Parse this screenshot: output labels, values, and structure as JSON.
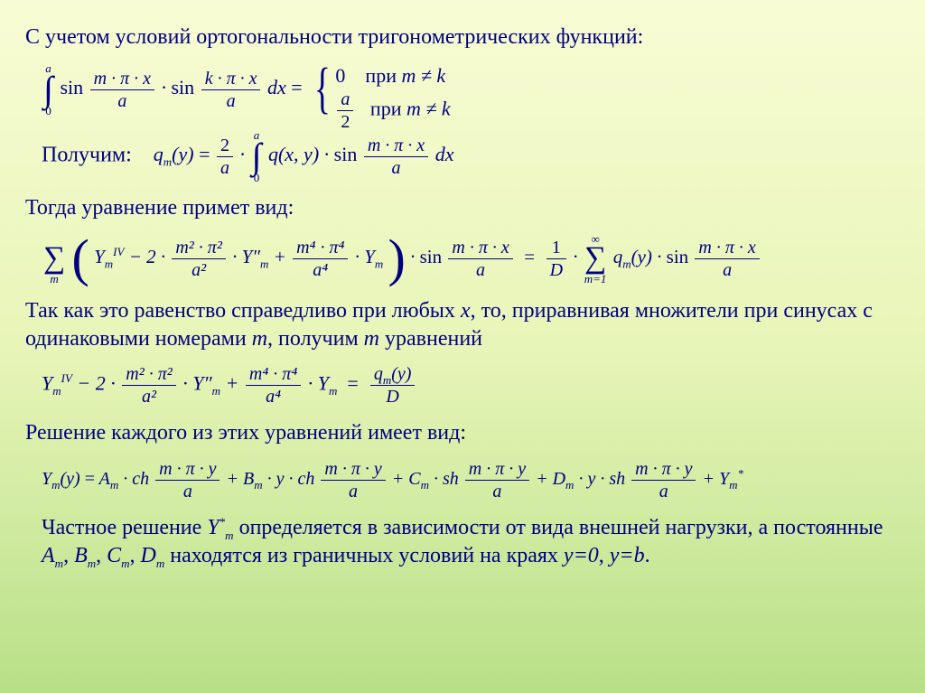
{
  "text": {
    "line1": "С учетом условий ортогональности тригонометрических функций:",
    "line2_label": "Получим:",
    "line3": "Тогда уравнение  примет вид:",
    "line4a": "Так как это равенство справедливо при любых ",
    "line4b": ", то, приравнивая множители при синусах с одинаковыми номерами ",
    "line4c": ", получим ",
    "line4d": " уравнений",
    "line5": "Решение каждого из этих уравнений имеет вид:",
    "line6a": "Частное решение ",
    "line6b": " определяется в зависимости от вида внешней нагрузки, а постоянные ",
    "line6c": " находятся из граничных условий на краях "
  },
  "math": {
    "sin": "sin",
    "ch": "ch",
    "sh": "sh",
    "int_a": "a",
    "int_0": "0",
    "mpx": "m · π · x",
    "kpx": "k · π · x",
    "mpy": "m · π · y",
    "a": "a",
    "dx": "dx",
    "eq": "=",
    "zero": "0",
    "case_pri": "при ",
    "mneqk": "m ≠ k",
    "a_over_2_num": "a",
    "a_over_2_den": "2",
    "qm_y": "q",
    "sub_m": "m",
    "y_arg": "(y)",
    "two_over_a_num": "2",
    "two_over_a_den": "a",
    "q_xy": "q(x, y)",
    "Ym": "Y",
    "IV": "IV",
    "minus2": " − 2 ·",
    "m2p2": "m² · π²",
    "a2": "a²",
    "Ypp": "· Y″",
    "plus": " + ",
    "m4p4": "m⁴ · π⁴",
    "a4": "a⁴",
    "dotYm": "· Y",
    "one_over_D_num": "1",
    "one_over_D_den": "D",
    "sum_inf": "∞",
    "sum_m1": "m=1",
    "sum_m": "m",
    "D": "D",
    "Am": "A",
    "Bm": "B",
    "Cm": "C",
    "Dm": "D",
    "dot_y_dot": " · y · ",
    "Ystar": "Y",
    "star": "*",
    "x": "x",
    "m": "m",
    "const_list": "A",
    "comma": ", ",
    "y0": "y=0",
    "yb": "y=b",
    "period": "."
  },
  "style": {
    "text_color": "#000080",
    "bg_top": "#f8fcd4",
    "bg_bottom": "#b8e088",
    "body_fontsize": 24,
    "eq_fontsize": 22
  }
}
